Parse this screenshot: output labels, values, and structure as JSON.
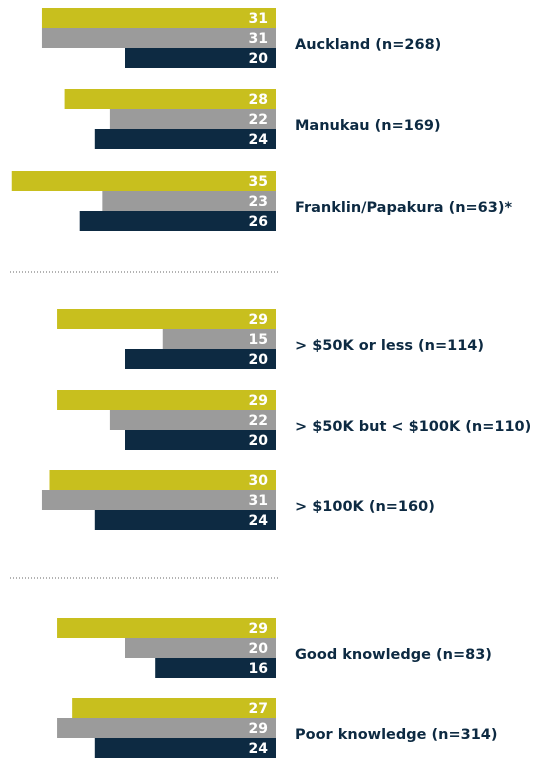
{
  "chart_data": {
    "type": "bar",
    "orientation": "horizontal",
    "categories": [
      "Auckland (n=268)",
      "Manukau (n=169)",
      "Franklin/Papakura (n=63)*",
      "> $50K or less (n=114)",
      "> $50K but < $100K (n=110)",
      "> $100K (n=160)",
      "Good knowledge (n=83)",
      "Poor knowledge (n=314)"
    ],
    "series": [
      {
        "color": "#c8bf1e",
        "values": [
          31,
          28,
          35,
          29,
          29,
          30,
          29,
          27
        ]
      },
      {
        "color": "#9b9b9b",
        "values": [
          31,
          22,
          23,
          15,
          22,
          31,
          20,
          29
        ]
      },
      {
        "color": "#0d2a42",
        "values": [
          20,
          24,
          26,
          20,
          20,
          24,
          16,
          24
        ]
      }
    ]
  }
}
